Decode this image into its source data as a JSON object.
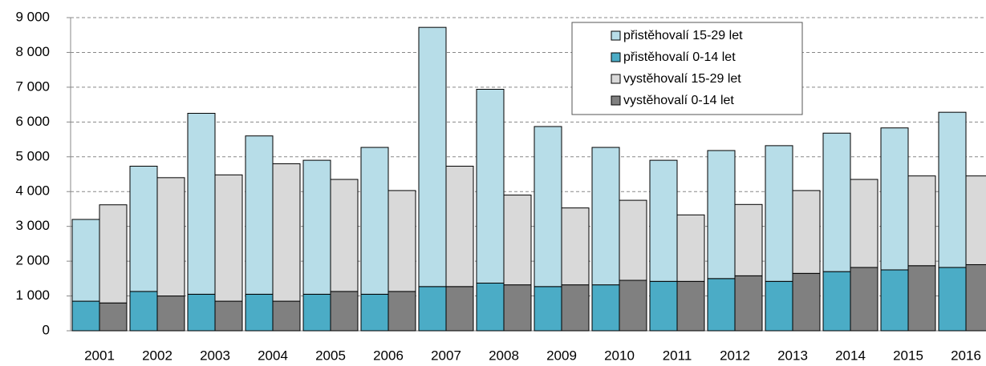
{
  "chart_data": {
    "type": "bar",
    "categories": [
      "2001",
      "2002",
      "2003",
      "2004",
      "2005",
      "2006",
      "2007",
      "2008",
      "2009",
      "2010",
      "2011",
      "2012",
      "2013",
      "2014",
      "2015",
      "2016"
    ],
    "series": [
      {
        "name": "přistěhovalí 0-14 let",
        "color": "#4bacc6",
        "values": [
          850,
          1130,
          1050,
          1050,
          1050,
          1050,
          1270,
          1370,
          1270,
          1320,
          1420,
          1500,
          1420,
          1700,
          1750,
          1820
        ]
      },
      {
        "name": "přistěhovalí 15-29 let",
        "color": "#b7dde8",
        "values": [
          2350,
          3600,
          5200,
          4550,
          3850,
          4220,
          7450,
          5570,
          4600,
          3950,
          3480,
          3680,
          3900,
          3980,
          4080,
          4460
        ]
      },
      {
        "name": "vystěhovalí 0-14 let",
        "color": "#808080",
        "values": [
          800,
          1000,
          850,
          850,
          1130,
          1130,
          1270,
          1320,
          1320,
          1450,
          1420,
          1580,
          1650,
          1820,
          1870,
          1900
        ]
      },
      {
        "name": "vystěhovalí 15-29 let",
        "color": "#d9d9d9",
        "values": [
          2820,
          3400,
          3630,
          3950,
          3220,
          2900,
          3460,
          2580,
          2210,
          2300,
          1910,
          2050,
          2380,
          2530,
          2580,
          2550
        ]
      }
    ],
    "ylim": [
      0,
      9000
    ],
    "yticks": [
      0,
      {
        "value": 1000,
        "label": "1 000"
      },
      {
        "value": 2000,
        "label": "2 000"
      },
      {
        "value": 3000,
        "label": "3 000"
      },
      {
        "value": 4000,
        "label": "4 000"
      },
      {
        "value": 5000,
        "label": "5 000"
      },
      {
        "value": 6000,
        "label": "6 000"
      },
      {
        "value": 7000,
        "label": "7 000"
      },
      {
        "value": 8000,
        "label": "8 000"
      },
      {
        "value": 9000,
        "label": "9 000"
      }
    ],
    "grid": true,
    "legend": "upper right"
  }
}
